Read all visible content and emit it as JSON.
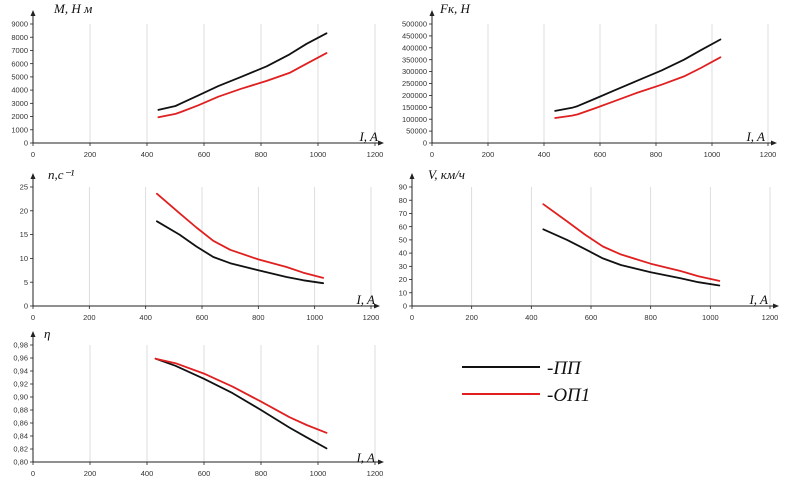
{
  "colors": {
    "pp": "#111111",
    "op1": "#e02020",
    "axis": "#222222",
    "grid": "#d4d4d4"
  },
  "legend": {
    "items": [
      {
        "label": "-ПП",
        "color": "#111111"
      },
      {
        "label": "-ОП1",
        "color": "#e02020"
      }
    ]
  },
  "chart_data": [
    {
      "type": "line",
      "ylabel": "M, Н м",
      "xlabel": "I, A",
      "xlim": [
        0,
        1200
      ],
      "ylim": [
        0,
        9000
      ],
      "xticks": [
        0,
        200,
        400,
        600,
        800,
        1000,
        1200
      ],
      "yticks": [
        0,
        1000,
        2000,
        3000,
        4000,
        5000,
        6000,
        7000,
        8000,
        9000
      ],
      "grid": true,
      "series": [
        {
          "name": "-ПП",
          "x": [
            440,
            500,
            520,
            580,
            650,
            730,
            820,
            900,
            960,
            1030
          ],
          "y": [
            2500,
            2800,
            3000,
            3600,
            4300,
            5000,
            5800,
            6700,
            7500,
            8300
          ]
        },
        {
          "name": "-ОП1",
          "x": [
            440,
            500,
            520,
            580,
            650,
            730,
            820,
            900,
            960,
            1030
          ],
          "y": [
            1950,
            2200,
            2350,
            2850,
            3500,
            4100,
            4700,
            5300,
            6000,
            6800
          ]
        }
      ]
    },
    {
      "type": "line",
      "ylabel": "Fк, Н",
      "xlabel": "I, A",
      "xlim": [
        0,
        1200
      ],
      "ylim": [
        0,
        500000
      ],
      "xticks": [
        0,
        200,
        400,
        600,
        800,
        1000,
        1200
      ],
      "yticks": [
        0,
        50000,
        100000,
        150000,
        200000,
        250000,
        300000,
        350000,
        400000,
        450000,
        500000
      ],
      "grid": true,
      "series": [
        {
          "name": "-ПП",
          "x": [
            440,
            500,
            520,
            580,
            650,
            730,
            820,
            900,
            960,
            1030
          ],
          "y": [
            135000,
            148000,
            155000,
            185000,
            220000,
            260000,
            305000,
            350000,
            390000,
            435000
          ]
        },
        {
          "name": "-ОП1",
          "x": [
            440,
            500,
            520,
            580,
            650,
            730,
            820,
            900,
            960,
            1030
          ],
          "y": [
            105000,
            115000,
            120000,
            145000,
            175000,
            210000,
            245000,
            280000,
            315000,
            360000
          ]
        }
      ]
    },
    {
      "type": "line",
      "ylabel": "n,с⁻¹",
      "xlabel": "I, A",
      "xlim": [
        0,
        1200
      ],
      "ylim": [
        0,
        25
      ],
      "xticks": [
        0,
        200,
        400,
        600,
        800,
        1000,
        1200
      ],
      "yticks": [
        0,
        5,
        10,
        15,
        20,
        25
      ],
      "grid": true,
      "series": [
        {
          "name": "-ПП",
          "x": [
            440,
            520,
            580,
            640,
            700,
            800,
            900,
            960,
            1030
          ],
          "y": [
            17.8,
            15,
            12.5,
            10.3,
            9,
            7.5,
            6.1,
            5.4,
            4.8
          ]
        },
        {
          "name": "-ОП1",
          "x": [
            440,
            520,
            580,
            640,
            700,
            800,
            900,
            960,
            1030
          ],
          "y": [
            23.6,
            19.5,
            16.5,
            13.7,
            11.8,
            9.8,
            8.2,
            7,
            5.9
          ]
        }
      ]
    },
    {
      "type": "line",
      "ylabel": "V, км/ч",
      "xlabel": "I, A",
      "xlim": [
        0,
        1200
      ],
      "ylim": [
        0,
        90
      ],
      "xticks": [
        0,
        200,
        400,
        600,
        800,
        1000,
        1200
      ],
      "yticks": [
        0,
        10,
        20,
        30,
        40,
        50,
        60,
        70,
        80,
        90
      ],
      "grid": true,
      "series": [
        {
          "name": "-ПП",
          "x": [
            440,
            520,
            580,
            640,
            700,
            800,
            900,
            960,
            1030
          ],
          "y": [
            58,
            50,
            43,
            36,
            31,
            25.5,
            21,
            18,
            15.5
          ]
        },
        {
          "name": "-ОП1",
          "x": [
            440,
            520,
            580,
            640,
            700,
            800,
            900,
            960,
            1030
          ],
          "y": [
            77,
            64,
            54,
            45,
            39,
            32,
            26.5,
            22.5,
            19
          ]
        }
      ]
    },
    {
      "type": "line",
      "ylabel": "η",
      "xlabel": "I, A",
      "xlim": [
        0,
        1200
      ],
      "ylim": [
        0.8,
        0.98
      ],
      "xticks": [
        0,
        200,
        400,
        600,
        800,
        1000,
        1200
      ],
      "yticks": [
        0.8,
        0.82,
        0.84,
        0.86,
        0.88,
        0.9,
        0.92,
        0.94,
        0.96,
        0.98
      ],
      "ytick_labels": [
        "0,80",
        "0,82",
        "0,84",
        "0,86",
        "0,88",
        "0,90",
        "0,92",
        "0,94",
        "0,96",
        "0,98"
      ],
      "grid": true,
      "series": [
        {
          "name": "-ПП",
          "x": [
            430,
            500,
            600,
            700,
            800,
            900,
            960,
            1030
          ],
          "y": [
            0.959,
            0.948,
            0.928,
            0.906,
            0.88,
            0.853,
            0.838,
            0.821
          ]
        },
        {
          "name": "-ОП1",
          "x": [
            430,
            500,
            600,
            700,
            800,
            900,
            960,
            1030
          ],
          "y": [
            0.959,
            0.952,
            0.936,
            0.916,
            0.893,
            0.869,
            0.857,
            0.845
          ]
        }
      ]
    }
  ]
}
